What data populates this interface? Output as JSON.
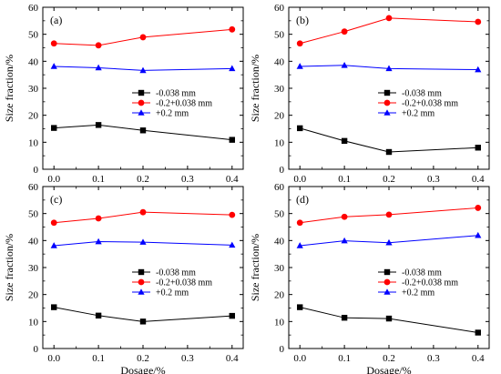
{
  "chart_data": [
    {
      "type": "line",
      "panel_label": "(a)",
      "x": [
        0.0,
        0.1,
        0.2,
        0.4
      ],
      "xlim": [
        -0.025,
        0.425
      ],
      "ylim": [
        0,
        60
      ],
      "xticks": [
        "0.0",
        "0.1",
        "0.2",
        "0.3",
        "0.4"
      ],
      "yticks": [
        "0",
        "10",
        "20",
        "30",
        "40",
        "50",
        "60"
      ],
      "xlabel": "",
      "ylabel": "Size fraction/%",
      "legend_position": "center-right",
      "series": [
        {
          "name": "-0.038 mm",
          "color": "#000000",
          "marker": "square",
          "values": [
            15.3,
            16.4,
            14.4,
            10.9
          ]
        },
        {
          "name": "-0.2+0.038 mm",
          "color": "#ff0000",
          "marker": "circle",
          "values": [
            46.6,
            45.9,
            48.9,
            51.8
          ]
        },
        {
          "name": "+0.2 mm",
          "color": "#0000ff",
          "marker": "triangle",
          "values": [
            38.1,
            37.6,
            36.6,
            37.3
          ]
        }
      ]
    },
    {
      "type": "line",
      "panel_label": "(b)",
      "x": [
        0.0,
        0.1,
        0.2,
        0.4
      ],
      "xlim": [
        -0.025,
        0.425
      ],
      "ylim": [
        0,
        60
      ],
      "xticks": [
        "0.0",
        "0.1",
        "0.2",
        "0.3",
        "0.4"
      ],
      "yticks": [
        "0",
        "10",
        "20",
        "30",
        "40",
        "50",
        "60"
      ],
      "xlabel": "",
      "ylabel": "Size fraction/%",
      "legend_position": "center-right",
      "series": [
        {
          "name": "-0.038 mm",
          "color": "#000000",
          "marker": "square",
          "values": [
            15.2,
            10.5,
            6.4,
            8.0
          ]
        },
        {
          "name": "-0.2+0.038 mm",
          "color": "#ff0000",
          "marker": "circle",
          "values": [
            46.6,
            51.0,
            56.0,
            54.6
          ]
        },
        {
          "name": "+0.2 mm",
          "color": "#0000ff",
          "marker": "triangle",
          "values": [
            38.1,
            38.5,
            37.3,
            36.9
          ]
        }
      ]
    },
    {
      "type": "line",
      "panel_label": "(c)",
      "x": [
        0.0,
        0.1,
        0.2,
        0.4
      ],
      "xlim": [
        -0.025,
        0.425
      ],
      "ylim": [
        0,
        60
      ],
      "xticks": [
        "0.0",
        "0.1",
        "0.2",
        "0.3",
        "0.4"
      ],
      "yticks": [
        "0",
        "10",
        "20",
        "30",
        "40",
        "50",
        "60"
      ],
      "xlabel": "Dosage/%",
      "ylabel": "Size fraction/%",
      "legend_position": "center-right",
      "series": [
        {
          "name": "-0.038 mm",
          "color": "#000000",
          "marker": "square",
          "values": [
            15.3,
            12.2,
            10.0,
            12.1
          ]
        },
        {
          "name": "-0.2+0.038 mm",
          "color": "#ff0000",
          "marker": "circle",
          "values": [
            46.6,
            48.2,
            50.5,
            49.5
          ]
        },
        {
          "name": "+0.2 mm",
          "color": "#0000ff",
          "marker": "triangle",
          "values": [
            38.1,
            39.6,
            39.4,
            38.3
          ]
        }
      ]
    },
    {
      "type": "line",
      "panel_label": "(d)",
      "x": [
        0.0,
        0.1,
        0.2,
        0.4
      ],
      "xlim": [
        -0.025,
        0.425
      ],
      "ylim": [
        0,
        60
      ],
      "xticks": [
        "0.0",
        "0.1",
        "0.2",
        "0.3",
        "0.4"
      ],
      "yticks": [
        "0",
        "10",
        "20",
        "30",
        "40",
        "50",
        "60"
      ],
      "xlabel": "Dosage/%",
      "ylabel": "Size fraction/%",
      "legend_position": "center-right",
      "series": [
        {
          "name": "-0.038 mm",
          "color": "#000000",
          "marker": "square",
          "values": [
            15.3,
            11.4,
            11.1,
            5.9
          ]
        },
        {
          "name": "-0.2+0.038 mm",
          "color": "#ff0000",
          "marker": "circle",
          "values": [
            46.6,
            48.8,
            49.6,
            52.1
          ]
        },
        {
          "name": "+0.2 mm",
          "color": "#0000ff",
          "marker": "triangle",
          "values": [
            38.1,
            39.9,
            39.2,
            41.9
          ]
        }
      ]
    }
  ]
}
